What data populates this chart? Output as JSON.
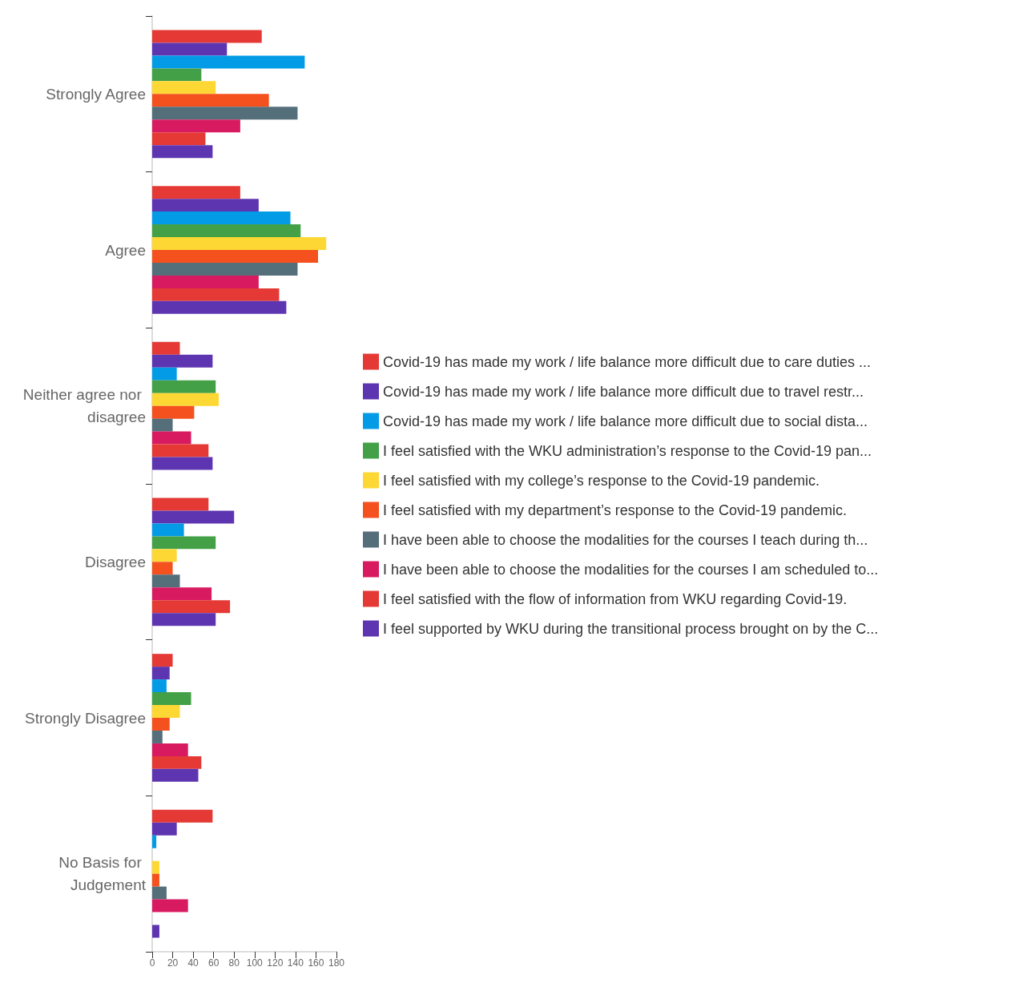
{
  "chart_data": {
    "type": "bar",
    "orientation": "horizontal",
    "categories": [
      "Strongly Agree",
      "Agree",
      "Neither agree nor disagree",
      "Disagree",
      "Strongly Disagree",
      "No Basis for Judgement"
    ],
    "xlim": [
      0,
      180
    ],
    "xticks": [
      0,
      20,
      40,
      60,
      80,
      100,
      120,
      140,
      160,
      180
    ],
    "grid": false,
    "legend": "right",
    "series": [
      {
        "name": "Covid-19 has made my work / life balance more difficult due to care duties ...",
        "color": "#e53935",
        "values": [
          107,
          86,
          27,
          55,
          20,
          59
        ]
      },
      {
        "name": "Covid-19 has made my work / life balance more difficult due to travel restr...",
        "color": "#5e35b1",
        "values": [
          73,
          104,
          59,
          80,
          17,
          24
        ]
      },
      {
        "name": "Covid-19 has made my work / life balance more difficult due to social dista...",
        "color": "#039be5",
        "values": [
          149,
          135,
          24,
          31,
          14,
          4
        ]
      },
      {
        "name": "I feel satisfied with the WKU administration’s response to the Covid-19 pan...",
        "color": "#43a047",
        "values": [
          48,
          145,
          62,
          62,
          38,
          0
        ]
      },
      {
        "name": "I feel satisfied with my college’s response to the Covid-19 pandemic.",
        "color": "#fdd835",
        "values": [
          62,
          170,
          65,
          24,
          27,
          7
        ]
      },
      {
        "name": "I feel satisfied with my department’s response to the Covid-19 pandemic.",
        "color": "#f4511e",
        "values": [
          114,
          162,
          41,
          20,
          17,
          7
        ]
      },
      {
        "name": "I have been able to choose the modalities for the courses I teach during th...",
        "color": "#546e7a",
        "values": [
          142,
          142,
          20,
          27,
          10,
          14
        ]
      },
      {
        "name": "I have been able to choose the modalities for the courses I am scheduled to...",
        "color": "#d81b60",
        "values": [
          86,
          104,
          38,
          58,
          35,
          35
        ]
      },
      {
        "name": "I feel satisfied with the flow of information from WKU regarding Covid-19.",
        "color": "#e53935",
        "values": [
          52,
          124,
          55,
          76,
          48,
          0
        ]
      },
      {
        "name": "I feel supported by WKU during the transitional process brought on by the C...",
        "color": "#5e35b1",
        "values": [
          59,
          131,
          59,
          62,
          45,
          7
        ]
      }
    ]
  }
}
